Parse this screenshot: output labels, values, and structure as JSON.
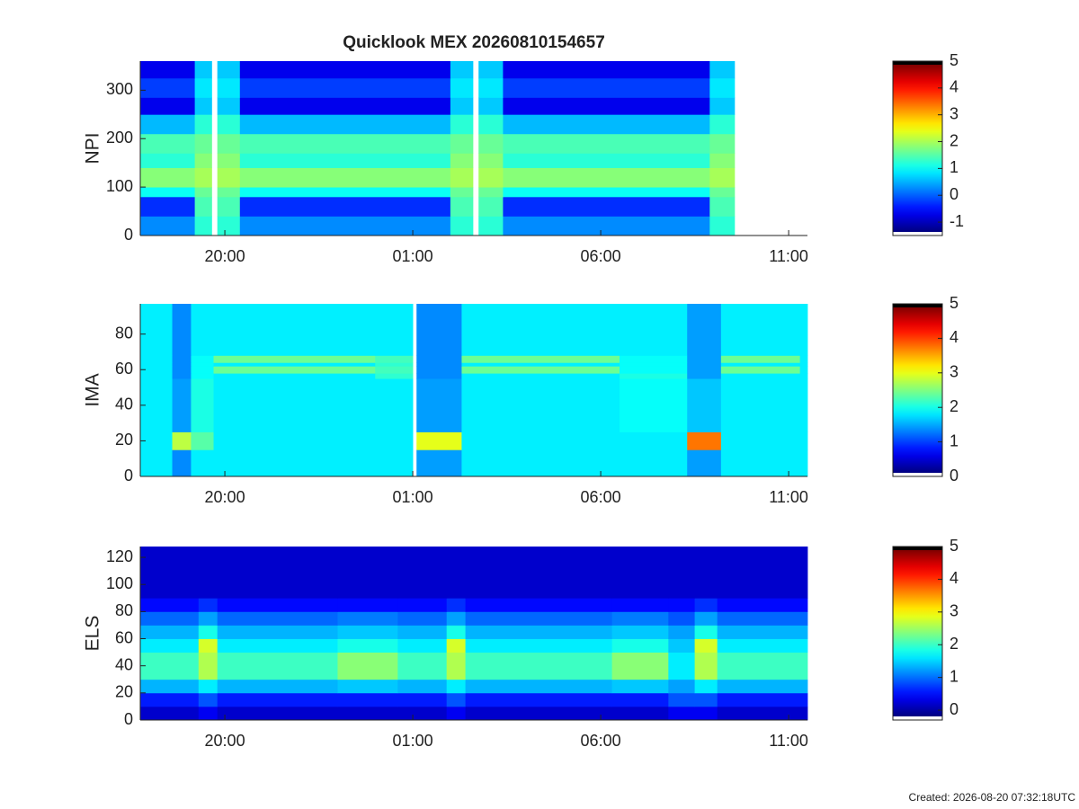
{
  "chart_data": [
    {
      "type": "heatmap",
      "title": "Quicklook MEX 20260810154657",
      "ylabel": "NPI",
      "colormap": "jet",
      "xlim": [
        17.75,
        35.5
      ],
      "xticks": [
        {
          "value": 20,
          "label": "20:00"
        },
        {
          "value": 25,
          "label": "01:00"
        },
        {
          "value": 30,
          "label": "06:00"
        },
        {
          "value": 35,
          "label": "11:00"
        }
      ],
      "ylim": [
        0,
        360
      ],
      "yticks": [
        0,
        100,
        200,
        300
      ],
      "clim": [
        -1.5,
        5
      ],
      "cticks": [
        -1,
        0,
        1,
        2,
        3,
        4,
        5
      ],
      "x_edges": [
        17.75,
        19.2,
        19.65,
        19.8,
        20.4,
        26.0,
        26.6,
        26.75,
        27.4,
        32.9,
        33.56
      ],
      "y_edges": [
        0,
        40,
        80,
        100,
        140,
        170,
        210,
        250,
        285,
        325,
        360
      ],
      "values": [
        [
          0.2,
          1.2,
          null,
          1.2,
          0.2,
          1.2,
          null,
          1.2,
          0.2,
          1.2
        ],
        [
          -0.4,
          1.4,
          null,
          1.4,
          -0.4,
          1.4,
          null,
          1.4,
          -0.4,
          1.4
        ],
        [
          1.0,
          1.6,
          null,
          1.6,
          1.0,
          1.6,
          null,
          1.6,
          1.0,
          1.6
        ],
        [
          1.8,
          2.0,
          null,
          2.0,
          1.8,
          2.0,
          null,
          2.0,
          1.8,
          2.0
        ],
        [
          1.2,
          1.8,
          null,
          1.8,
          1.2,
          1.8,
          null,
          1.8,
          1.2,
          1.8
        ],
        [
          1.4,
          1.6,
          null,
          1.6,
          1.4,
          1.6,
          null,
          1.6,
          1.4,
          1.6
        ],
        [
          0.5,
          1.2,
          null,
          1.2,
          0.5,
          1.2,
          null,
          1.2,
          0.5,
          1.2
        ],
        [
          -0.8,
          0.6,
          null,
          0.6,
          -0.8,
          0.6,
          null,
          0.6,
          -0.8,
          0.6
        ],
        [
          -0.3,
          0.8,
          null,
          0.8,
          -0.3,
          0.8,
          null,
          0.8,
          -0.3,
          0.8
        ],
        [
          -0.8,
          0.6,
          null,
          0.6,
          -0.8,
          0.6,
          null,
          0.6,
          -0.8,
          0.6
        ]
      ]
    },
    {
      "type": "heatmap",
      "ylabel": "IMA",
      "colormap": "jet",
      "xlim": [
        17.75,
        35.5
      ],
      "xticks": [
        {
          "value": 20,
          "label": "20:00"
        },
        {
          "value": 25,
          "label": "01:00"
        },
        {
          "value": 30,
          "label": "06:00"
        },
        {
          "value": 35,
          "label": "11:00"
        }
      ],
      "ylim": [
        0,
        97
      ],
      "yticks": [
        0,
        20,
        40,
        60,
        80
      ],
      "clim": [
        0,
        5
      ],
      "cticks": [
        0,
        1,
        2,
        3,
        4,
        5
      ],
      "x_edges": [
        17.75,
        18.6,
        19.1,
        19.7,
        24.0,
        25.0,
        25.1,
        26.3,
        30.5,
        32.3,
        33.2,
        35.3,
        35.5
      ],
      "y_edges": [
        0,
        15,
        25,
        55,
        58,
        62,
        64,
        68,
        97
      ],
      "values": [
        [
          1.8,
          1.3,
          1.8,
          1.8,
          1.8,
          null,
          1.4,
          1.8,
          1.8,
          1.4,
          1.8,
          1.8
        ],
        [
          1.8,
          2.8,
          2.3,
          1.8,
          1.8,
          null,
          3.0,
          1.8,
          1.8,
          3.8,
          1.8,
          1.8
        ],
        [
          1.8,
          1.4,
          2.0,
          1.8,
          1.8,
          null,
          1.4,
          1.8,
          1.9,
          1.6,
          1.8,
          1.8
        ],
        [
          1.8,
          1.3,
          1.9,
          1.8,
          2.1,
          null,
          1.3,
          1.8,
          2.0,
          1.4,
          1.8,
          1.8
        ],
        [
          1.8,
          1.3,
          1.9,
          2.4,
          2.2,
          null,
          1.3,
          2.4,
          1.9,
          1.4,
          2.4,
          1.8
        ],
        [
          1.8,
          1.3,
          1.9,
          1.8,
          2.1,
          null,
          1.3,
          1.8,
          1.9,
          1.4,
          1.8,
          1.8
        ],
        [
          1.8,
          1.3,
          1.9,
          2.4,
          2.2,
          null,
          1.3,
          2.4,
          1.9,
          1.4,
          2.4,
          1.8
        ],
        [
          1.8,
          1.3,
          1.8,
          1.8,
          1.8,
          null,
          1.3,
          1.8,
          1.8,
          1.4,
          1.8,
          1.8
        ]
      ]
    },
    {
      "type": "heatmap",
      "ylabel": "ELS",
      "colormap": "jet",
      "xlim": [
        17.75,
        35.5
      ],
      "xticks": [
        {
          "value": 20,
          "label": "20:00"
        },
        {
          "value": 25,
          "label": "01:00"
        },
        {
          "value": 30,
          "label": "06:00"
        },
        {
          "value": 35,
          "label": "11:00"
        }
      ],
      "ylim": [
        0,
        128
      ],
      "yticks": [
        0,
        20,
        40,
        60,
        80,
        100,
        120
      ],
      "clim": [
        -0.3,
        5
      ],
      "cticks": [
        0,
        1,
        2,
        3,
        4,
        5
      ],
      "x_edges": [
        17.75,
        19.3,
        19.8,
        23.0,
        24.6,
        25.9,
        26.4,
        30.3,
        31.8,
        32.5,
        33.1,
        35.5
      ],
      "y_edges": [
        0,
        10,
        20,
        30,
        50,
        60,
        70,
        80,
        90,
        128
      ],
      "values": [
        [
          0.1,
          0.3,
          0.1,
          0.1,
          0.1,
          0.3,
          0.1,
          0.1,
          0.3,
          0.3,
          0.1
        ],
        [
          0.5,
          0.8,
          0.5,
          0.5,
          0.5,
          0.8,
          0.5,
          0.5,
          0.8,
          0.8,
          0.5
        ],
        [
          1.3,
          1.6,
          1.3,
          1.4,
          1.3,
          1.6,
          1.3,
          1.4,
          1.2,
          1.6,
          1.3
        ],
        [
          2.0,
          2.6,
          2.0,
          2.4,
          2.0,
          2.6,
          2.0,
          2.4,
          1.6,
          2.6,
          2.0
        ],
        [
          1.6,
          2.8,
          1.6,
          1.8,
          1.6,
          2.8,
          1.6,
          1.8,
          1.4,
          2.8,
          1.6
        ],
        [
          1.3,
          1.8,
          1.3,
          1.4,
          1.3,
          1.8,
          1.3,
          1.4,
          1.2,
          1.8,
          1.3
        ],
        [
          0.9,
          1.2,
          0.9,
          1.0,
          0.9,
          1.2,
          0.9,
          1.0,
          0.8,
          1.2,
          0.9
        ],
        [
          0.4,
          0.6,
          0.4,
          0.4,
          0.4,
          0.6,
          0.4,
          0.4,
          0.4,
          0.6,
          0.4
        ],
        [
          0.1,
          0.1,
          0.1,
          0.1,
          0.1,
          0.1,
          0.1,
          0.1,
          0.1,
          0.1,
          0.1
        ]
      ]
    }
  ],
  "created": "Created: 2026-08-20 07:32:18UTC"
}
